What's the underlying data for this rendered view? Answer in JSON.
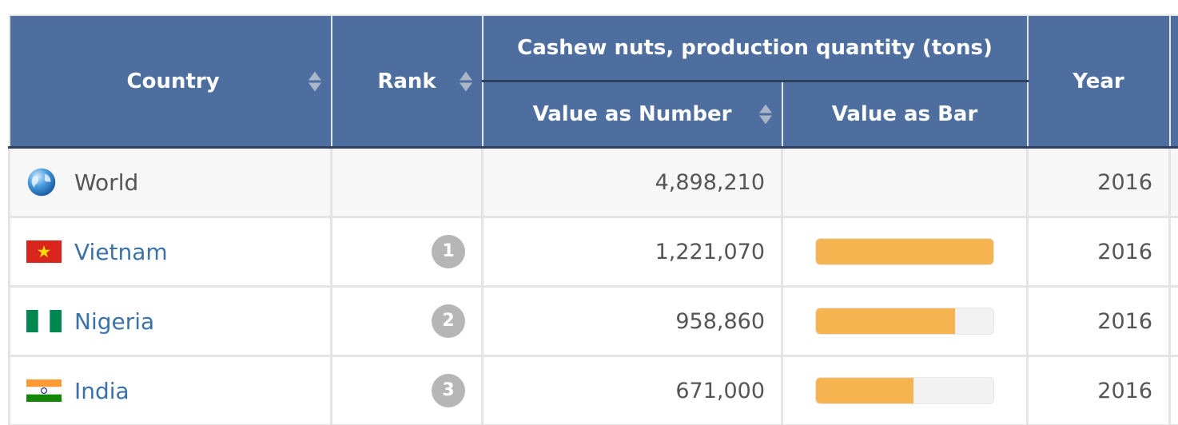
{
  "header": {
    "country": "Country",
    "rank": "Rank",
    "group": "Cashew nuts, production quantity (tons)",
    "value_number": "Value as Number",
    "value_bar": "Value as Bar",
    "year": "Year"
  },
  "colors": {
    "header_bg": "#4d6e9e",
    "bar": "#f5b44f",
    "link": "#3a72a8"
  },
  "rows": [
    {
      "country": "World",
      "icon": "globe-icon",
      "rank": "",
      "value": "4,898,210",
      "bar_fraction": null,
      "year": "2016",
      "link": false
    },
    {
      "country": "Vietnam",
      "icon": "vietnam-flag-icon",
      "rank": "1",
      "value": "1,221,070",
      "bar_fraction": 1.0,
      "year": "2016",
      "link": true
    },
    {
      "country": "Nigeria",
      "icon": "nigeria-flag-icon",
      "rank": "2",
      "value": "958,860",
      "bar_fraction": 0.785,
      "year": "2016",
      "link": true
    },
    {
      "country": "India",
      "icon": "india-flag-icon",
      "rank": "3",
      "value": "671,000",
      "bar_fraction": 0.55,
      "year": "2016",
      "link": true
    }
  ]
}
